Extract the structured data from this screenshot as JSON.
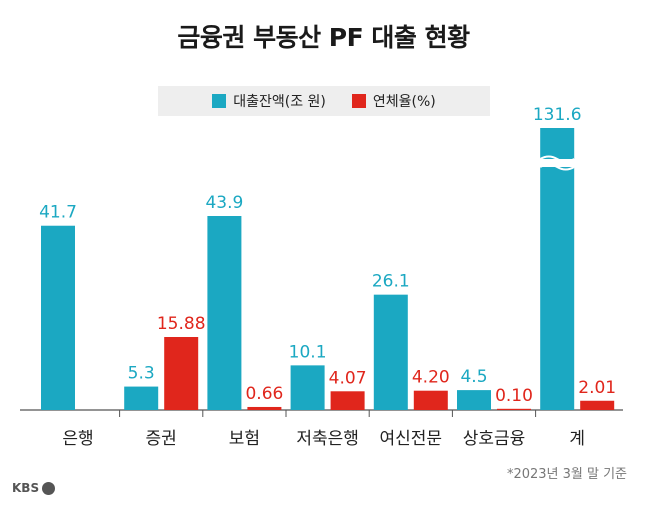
{
  "colors": {
    "loan": "#1ba8c2",
    "delinquency": "#e0261c"
  },
  "chart_data": {
    "type": "bar",
    "title": "금융권 부동산 PF 대출 현황",
    "categories": [
      "은행",
      "증권",
      "보험",
      "저축은행",
      "여신전문",
      "상호금융",
      "계"
    ],
    "series": [
      {
        "name": "대출잔액(조 원)",
        "values": [
          41.7,
          5.3,
          43.9,
          10.1,
          26.1,
          4.5,
          131.6
        ],
        "labels": [
          "41.7",
          "5.3",
          "43.9",
          "10.1",
          "26.1",
          "4.5",
          "131.6"
        ]
      },
      {
        "name": "연체율(%)",
        "values": [
          null,
          15.88,
          0.66,
          4.07,
          4.2,
          0.1,
          2.01
        ],
        "labels": [
          "",
          "15.88",
          "0.66",
          "4.07",
          "4.20",
          "0.10",
          "2.01"
        ]
      }
    ],
    "axis_break": {
      "series": 0,
      "category": "계"
    },
    "legend_position": "top-center",
    "grid": false
  },
  "footnote": "*2023년 3월 말 기준",
  "logo": "KBS"
}
